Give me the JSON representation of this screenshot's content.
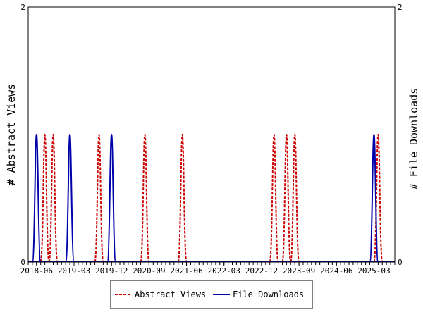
{
  "chart_data": {
    "type": "line",
    "xlabel": "",
    "ylabel_left": "# Abstract Views",
    "ylabel_right": "# File Downloads",
    "ylim_left": [
      0,
      2
    ],
    "ylim_right": [
      0,
      2
    ],
    "yticks_left": [
      "0",
      "2"
    ],
    "yticks_right": [
      "0",
      "2"
    ],
    "xlim": [
      "2018-04",
      "2025-08"
    ],
    "xtick_labels": [
      {
        "date": "2018-06",
        "label": "2018-06"
      },
      {
        "date": "2019-03",
        "label": "2019-03"
      },
      {
        "date": "2019-12",
        "label": "2019-12"
      },
      {
        "date": "2020-09",
        "label": "2020-09"
      },
      {
        "date": "2021-06",
        "label": "2021-06"
      },
      {
        "date": "2022-03",
        "label": "2022-03"
      },
      {
        "date": "2022-12",
        "label": "2022-12"
      },
      {
        "date": "2023-09",
        "label": "2023-09"
      },
      {
        "date": "2024-06",
        "label": "2024-06"
      },
      {
        "date": "2025-03",
        "label": "2025-03"
      }
    ],
    "grid": false,
    "legend_position": "bottom",
    "series": [
      {
        "name": "Abstract Views",
        "color": "#cc0000",
        "dash": "dashed",
        "axis": "left",
        "points": [
          {
            "x": "2018-08",
            "y": 1
          },
          {
            "x": "2018-10",
            "y": 1
          },
          {
            "x": "2019-09",
            "y": 1
          },
          {
            "x": "2020-08",
            "y": 1
          },
          {
            "x": "2021-05",
            "y": 1
          },
          {
            "x": "2023-03",
            "y": 1
          },
          {
            "x": "2023-06",
            "y": 1
          },
          {
            "x": "2023-08",
            "y": 1
          },
          {
            "x": "2025-04",
            "y": 1
          }
        ]
      },
      {
        "name": "File Downloads",
        "color": "#0000aa",
        "dash": "solid",
        "axis": "right",
        "points": [
          {
            "x": "2018-06",
            "y": 1
          },
          {
            "x": "2019-02",
            "y": 1
          },
          {
            "x": "2019-12",
            "y": 1
          },
          {
            "x": "2025-03",
            "y": 1
          }
        ]
      }
    ]
  }
}
